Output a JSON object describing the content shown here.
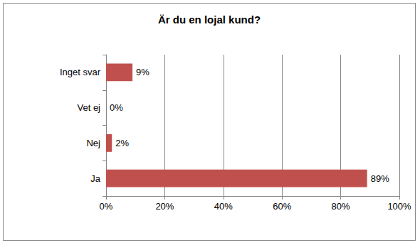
{
  "chart_data": {
    "type": "bar",
    "orientation": "horizontal",
    "title": "Är du en lojal kund?",
    "categories": [
      "Ja",
      "Nej",
      "Vet ej",
      "Inget svar"
    ],
    "values": [
      89,
      2,
      0,
      9
    ],
    "value_labels": [
      "89%",
      "2%",
      "0%",
      "9%"
    ],
    "data_labels": true,
    "color": "#c0504d",
    "xlim": [
      0,
      100
    ],
    "xticks": [
      {
        "value": 0,
        "label": "0%"
      },
      {
        "value": 20,
        "label": "20%"
      },
      {
        "value": 40,
        "label": "40%"
      },
      {
        "value": 60,
        "label": "60%"
      },
      {
        "value": 80,
        "label": "80%"
      },
      {
        "value": 100,
        "label": "100%"
      }
    ],
    "grid": true
  }
}
